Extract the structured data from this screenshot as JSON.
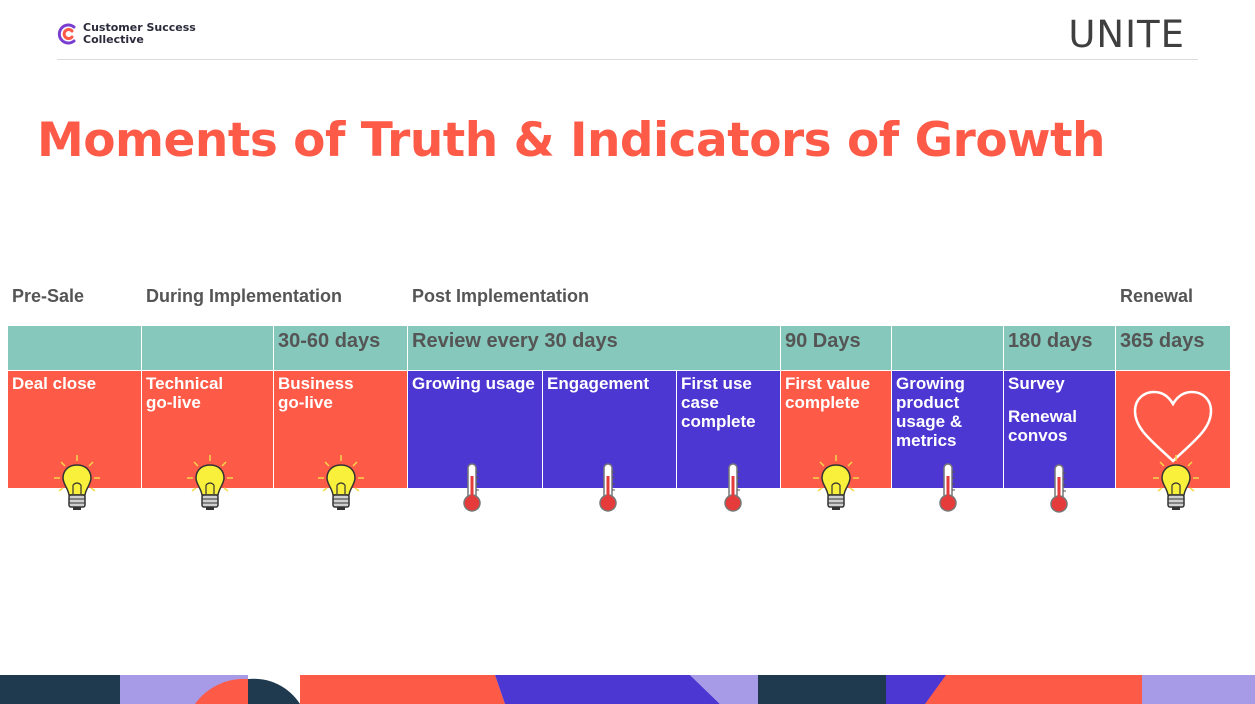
{
  "header": {
    "brand_line1": "Customer Success",
    "brand_line2": "Collective",
    "event_logo": "UNITE"
  },
  "title": "Moments of Truth & Indicators of Growth",
  "phases": [
    "Pre-Sale",
    "During Implementation",
    "Post Implementation",
    "Renewal"
  ],
  "timeline_headers": [
    "30-60 days",
    "Review every 30 days",
    "90 Days",
    "180 days",
    "365 days"
  ],
  "milestones": [
    {
      "label": "Deal close",
      "type": "moment-of-truth",
      "icon": "lightbulb-icon"
    },
    {
      "label": "Technical go-live",
      "type": "moment-of-truth",
      "icon": "lightbulb-icon"
    },
    {
      "label": "Business go-live",
      "type": "moment-of-truth",
      "icon": "lightbulb-icon"
    },
    {
      "label": "Growing usage",
      "type": "indicator-of-growth",
      "icon": "thermometer-icon"
    },
    {
      "label": "Engagement",
      "type": "indicator-of-growth",
      "icon": "thermometer-icon"
    },
    {
      "label": "First use case complete",
      "type": "indicator-of-growth",
      "icon": "thermometer-icon"
    },
    {
      "label": "First value complete",
      "type": "moment-of-truth",
      "icon": "lightbulb-icon"
    },
    {
      "label": "Growing product usage & metrics",
      "type": "indicator-of-growth",
      "icon": "thermometer-icon"
    },
    {
      "label": "Survey",
      "label2": "Renewal convos",
      "type": "indicator-of-growth",
      "icon": "thermometer-icon"
    },
    {
      "label": "",
      "type": "moment-of-truth",
      "icon": "lightbulb-icon",
      "extra_icon": "heart-icon"
    }
  ],
  "colors": {
    "accent": "#fe5a48",
    "moment_cell": "#fe5a48",
    "growth_cell": "#4d37d2",
    "header_band": "#86c8bc",
    "text_grey": "#555555",
    "dark_navy": "#1f3a4f",
    "lavender": "#a79ae6"
  }
}
